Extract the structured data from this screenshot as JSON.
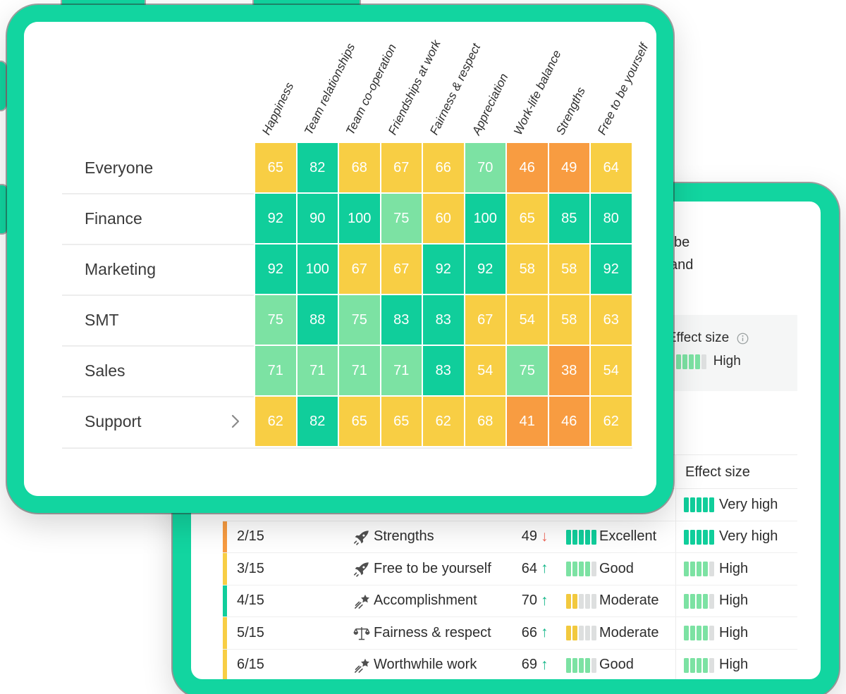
{
  "theme": {
    "frame_teal": "#12D5A0",
    "cell_green": "#10CE9B",
    "cell_light_green": "#7CE2A3",
    "cell_yellow": "#F8CE44",
    "cell_orange": "#F89C41",
    "bar_yellow": "#F2C93E",
    "bar_gray": "#DDDFDF",
    "card_gray": "#F5F6F6",
    "arrow_up_green": "#0FB586",
    "arrow_down_red": "#F0685A",
    "icon_gray": "#4f4f4f"
  },
  "heatmap": {
    "columns": [
      "Happiness",
      "Team relationships",
      "Team co-operation",
      "Friendships at work",
      "Fairness & respect",
      "Appreciation",
      "Work-life balance",
      "Strengths",
      "Free to be yourself"
    ],
    "rows": [
      {
        "label": "Everyone",
        "expandable": false,
        "values": [
          65,
          82,
          68,
          67,
          66,
          70,
          46,
          49,
          64
        ]
      },
      {
        "label": "Finance",
        "expandable": false,
        "values": [
          92,
          90,
          100,
          75,
          60,
          100,
          65,
          85,
          80
        ]
      },
      {
        "label": "Marketing",
        "expandable": false,
        "values": [
          92,
          100,
          67,
          67,
          92,
          92,
          58,
          58,
          92
        ]
      },
      {
        "label": "SMT",
        "expandable": false,
        "values": [
          75,
          88,
          75,
          83,
          83,
          67,
          54,
          58,
          63
        ]
      },
      {
        "label": "Sales",
        "expandable": false,
        "values": [
          71,
          71,
          71,
          71,
          83,
          54,
          75,
          38,
          54
        ]
      },
      {
        "label": "Support",
        "expandable": true,
        "values": [
          62,
          82,
          65,
          65,
          62,
          68,
          41,
          46,
          62
        ]
      }
    ],
    "color_bands": {
      "green_min": 80,
      "light_green_min": 70,
      "yellow_min": 50
    }
  },
  "clipped_text_lines": [
    "be",
    "and"
  ],
  "effect_card": {
    "title": "Effect size",
    "level": "High",
    "bars_filled": 4,
    "bars_total": 5,
    "bar_color": "light_green"
  },
  "ranking_table": {
    "header": {
      "effect_col": "Effect size"
    },
    "rows": [
      {
        "effect": {
          "label": "Very high",
          "filled": 5,
          "total": 5,
          "color": "green"
        }
      },
      {
        "rank": "2/15",
        "icon": "rocket",
        "label": "Strengths",
        "score": "49",
        "trend": "down",
        "verdict": {
          "label": "Excellent",
          "filled": 5,
          "total": 5,
          "color": "green"
        },
        "effect": {
          "label": "Very high",
          "filled": 5,
          "total": 5,
          "color": "green"
        },
        "accent": "orange"
      },
      {
        "rank": "3/15",
        "icon": "rocket",
        "label": "Free to be yourself",
        "score": "64",
        "trend": "up",
        "verdict": {
          "label": "Good",
          "filled": 4,
          "total": 5,
          "color": "light_green"
        },
        "effect": {
          "label": "High",
          "filled": 4,
          "total": 5,
          "color": "light_green"
        },
        "accent": "yellow"
      },
      {
        "rank": "4/15",
        "icon": "shooting-star",
        "label": "Accomplishment",
        "score": "70",
        "trend": "up",
        "verdict": {
          "label": "Moderate",
          "filled": 2,
          "total": 5,
          "color": "yellow"
        },
        "effect": {
          "label": "High",
          "filled": 4,
          "total": 5,
          "color": "light_green"
        },
        "accent": "green"
      },
      {
        "rank": "5/15",
        "icon": "scales",
        "label": "Fairness & respect",
        "score": "66",
        "trend": "up",
        "verdict": {
          "label": "Moderate",
          "filled": 2,
          "total": 5,
          "color": "yellow"
        },
        "effect": {
          "label": "High",
          "filled": 4,
          "total": 5,
          "color": "light_green"
        },
        "accent": "yellow"
      },
      {
        "rank": "6/15",
        "icon": "shooting-star",
        "label": "Worthwhile work",
        "score": "69",
        "trend": "up",
        "verdict": {
          "label": "Good",
          "filled": 4,
          "total": 5,
          "color": "light_green"
        },
        "effect": {
          "label": "High",
          "filled": 4,
          "total": 5,
          "color": "light_green"
        },
        "accent": "yellow"
      }
    ]
  }
}
